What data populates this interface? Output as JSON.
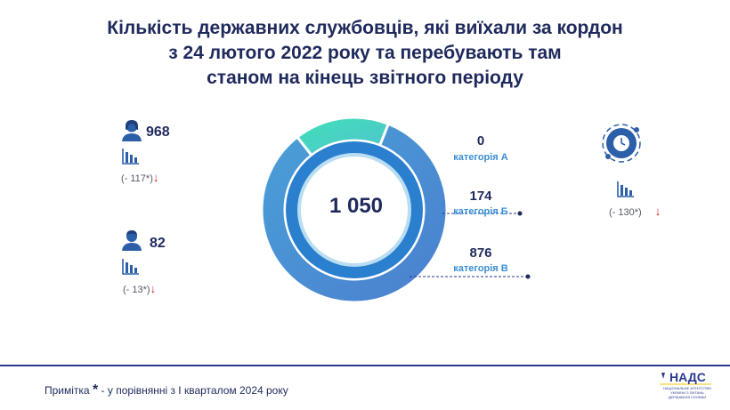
{
  "title": {
    "line1": "Кількість державних службовців, які виїхали за кордон",
    "line2": "з 24 лютого 2022 року та перебувають там",
    "line3": "станом на кінець звітного періоду"
  },
  "chart_data": {
    "type": "donut",
    "title": "Кількість державних службовців, які виїхали за кордон з 24 лютого 2022 року та перебувають там станом на кінець звітного періоду",
    "total_label": "1 050",
    "total": 1050,
    "categories": [
      "категорія А",
      "категорія Б",
      "категорія В"
    ],
    "values": [
      0,
      174,
      876
    ],
    "value_labels": [
      "0",
      "174",
      "876"
    ],
    "colors": [
      "#3fd9b3",
      "#3fd9b3",
      "#4a8fd6"
    ]
  },
  "left_stats": [
    {
      "value": "968",
      "delta": "(- 117*)",
      "icon": "woman-icon"
    },
    {
      "value": "82",
      "delta": "(- 13*)",
      "icon": "man-icon"
    }
  ],
  "right_stat": {
    "delta": "(- 130*)",
    "icon": "clock-globe-icon"
  },
  "arrow_down": "↓",
  "footnote": {
    "prefix": "Примітка",
    "star": "*",
    "text": "- у порівнянні з І кварталом 2024 року"
  },
  "logo": {
    "name": "НАДС",
    "subtitle": "НАЦІОНАЛЬНЕ АГЕНТСТВО УКРАЇНИ З ПИТАНЬ ДЕРЖАВНОЇ СЛУЖБИ"
  }
}
